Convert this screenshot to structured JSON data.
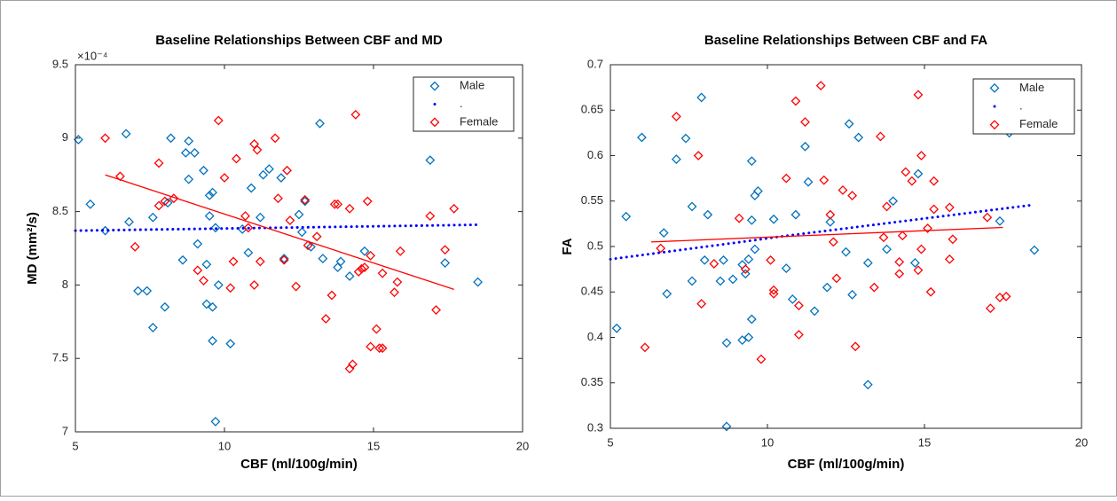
{
  "chart_data": [
    {
      "type": "scatter",
      "title": "Baseline Relationships Between CBF and MD",
      "xlabel": "CBF (ml/100g/min)",
      "ylabel": "MD (mm²/s)",
      "y_exponent": "×10⁻⁴",
      "xlim": [
        5,
        20
      ],
      "xticks": [
        5,
        10,
        15,
        20
      ],
      "ylim": [
        7,
        9.5
      ],
      "yticks": [
        7,
        7.5,
        8,
        8.5,
        9,
        9.5
      ],
      "legend": "upper right",
      "series": [
        {
          "name": "Male",
          "color": "#0072bd",
          "marker": "diamond",
          "x": [
            5.1,
            5.5,
            6.0,
            6.7,
            6.8,
            7.1,
            7.4,
            7.6,
            7.6,
            8.0,
            8.1,
            8.2,
            8.6,
            8.7,
            8.8,
            8.8,
            9.0,
            9.1,
            9.3,
            9.4,
            9.4,
            9.5,
            9.5,
            9.6,
            9.6,
            9.6,
            9.7,
            9.7,
            9.8,
            10.2,
            10.6,
            10.8,
            10.9,
            11.2,
            11.3,
            11.5,
            11.9,
            12.0,
            12.5,
            12.6,
            12.7,
            12.9,
            13.2,
            13.3,
            13.8,
            13.9,
            14.2,
            14.7,
            16.9,
            17.4,
            18.5
          ],
          "values": [
            8.99,
            8.55,
            8.37,
            9.03,
            8.43,
            7.96,
            7.96,
            8.46,
            7.71,
            7.85,
            8.56,
            9.0,
            8.17,
            8.9,
            8.98,
            8.72,
            8.9,
            8.28,
            8.78,
            8.14,
            7.87,
            8.47,
            8.61,
            8.63,
            7.85,
            7.62,
            7.07,
            8.39,
            8.0,
            7.6,
            8.38,
            8.22,
            8.66,
            8.46,
            8.75,
            8.79,
            8.73,
            8.18,
            8.48,
            8.36,
            8.57,
            8.26,
            9.1,
            8.18,
            8.12,
            8.16,
            8.06,
            8.23,
            8.85,
            8.15,
            8.02
          ]
        },
        {
          "name": ".",
          "color": "#0000ff",
          "marker": "dotted-line",
          "x": [
            5,
            18.5
          ],
          "values": [
            8.37,
            8.41
          ]
        },
        {
          "name": "Female",
          "color": "#ff0000",
          "marker": "diamond",
          "x": [
            6.0,
            6.5,
            7.0,
            7.8,
            7.8,
            8.0,
            8.3,
            9.1,
            9.3,
            9.8,
            10.0,
            10.2,
            10.3,
            10.4,
            10.7,
            10.8,
            11.0,
            11.0,
            11.1,
            11.2,
            11.7,
            11.8,
            12.0,
            12.1,
            12.2,
            12.4,
            12.7,
            12.8,
            13.1,
            13.4,
            13.6,
            13.7,
            13.8,
            14.2,
            14.2,
            14.3,
            14.4,
            14.5,
            14.6,
            14.7,
            14.8,
            14.9,
            14.9,
            15.1,
            15.2,
            15.3,
            15.3,
            15.7,
            15.8,
            15.9,
            16.9,
            17.1,
            17.4,
            17.7
          ],
          "values": [
            9.0,
            8.74,
            8.26,
            8.83,
            8.54,
            8.57,
            8.59,
            8.1,
            8.03,
            9.12,
            8.73,
            7.98,
            8.16,
            8.86,
            8.47,
            8.39,
            8.0,
            8.96,
            8.92,
            8.16,
            9.0,
            8.59,
            8.17,
            8.78,
            8.44,
            7.99,
            8.58,
            8.27,
            8.33,
            7.77,
            7.93,
            8.55,
            8.55,
            8.52,
            7.43,
            7.46,
            9.16,
            8.09,
            8.11,
            8.12,
            8.57,
            7.58,
            8.2,
            7.7,
            7.57,
            7.57,
            8.08,
            7.95,
            8.02,
            8.23,
            8.47,
            7.83,
            8.24,
            8.52
          ]
        }
      ],
      "fit_line": {
        "color": "#ff0000",
        "x": [
          6.0,
          17.7
        ],
        "values": [
          8.75,
          7.97
        ]
      }
    },
    {
      "type": "scatter",
      "title": "Baseline Relationships Between CBF and FA",
      "xlabel": "CBF (ml/100g/min)",
      "ylabel": "FA",
      "xlim": [
        5,
        20
      ],
      "xticks": [
        5,
        10,
        15,
        20
      ],
      "ylim": [
        0.3,
        0.7
      ],
      "yticks": [
        0.3,
        0.35,
        0.4,
        0.45,
        0.5,
        0.55,
        0.6,
        0.65,
        0.7
      ],
      "legend": "upper right",
      "series": [
        {
          "name": "Male",
          "color": "#0072bd",
          "marker": "diamond",
          "x": [
            5.2,
            5.5,
            6.0,
            6.7,
            6.8,
            7.1,
            7.4,
            7.6,
            7.6,
            7.9,
            8.0,
            8.1,
            8.5,
            8.6,
            8.7,
            8.7,
            8.9,
            9.2,
            9.2,
            9.3,
            9.4,
            9.4,
            9.5,
            9.5,
            9.5,
            9.6,
            9.6,
            9.7,
            10.2,
            10.6,
            10.8,
            10.9,
            11.2,
            11.3,
            11.5,
            11.9,
            12.0,
            12.5,
            12.6,
            12.7,
            12.9,
            13.2,
            13.2,
            13.8,
            14.0,
            14.7,
            14.8,
            17.4,
            17.7,
            18.5
          ],
          "values": [
            0.41,
            0.533,
            0.62,
            0.515,
            0.448,
            0.596,
            0.619,
            0.544,
            0.462,
            0.664,
            0.485,
            0.535,
            0.462,
            0.485,
            0.394,
            0.302,
            0.464,
            0.48,
            0.397,
            0.47,
            0.486,
            0.4,
            0.594,
            0.529,
            0.42,
            0.556,
            0.497,
            0.561,
            0.53,
            0.476,
            0.442,
            0.535,
            0.61,
            0.571,
            0.429,
            0.455,
            0.527,
            0.494,
            0.635,
            0.447,
            0.62,
            0.482,
            0.348,
            0.497,
            0.55,
            0.482,
            0.58,
            0.528,
            0.625,
            0.496
          ]
        },
        {
          "name": ".",
          "color": "#0000ff",
          "marker": "dotted-line",
          "x": [
            5,
            9.6,
            10.2,
            18.5
          ],
          "values": [
            0.486,
            0.507,
            0.51,
            0.546
          ]
        },
        {
          "name": "Female",
          "color": "#ff0000",
          "marker": "diamond",
          "x": [
            6.1,
            6.6,
            7.1,
            7.8,
            7.9,
            8.3,
            9.1,
            9.3,
            9.8,
            10.1,
            10.2,
            10.2,
            10.6,
            10.9,
            11.0,
            11.0,
            11.2,
            11.7,
            11.8,
            12.0,
            12.1,
            12.2,
            12.4,
            12.7,
            12.8,
            13.4,
            13.6,
            13.7,
            13.8,
            14.2,
            14.2,
            14.3,
            14.4,
            14.6,
            14.8,
            14.8,
            14.9,
            14.9,
            15.1,
            15.2,
            15.3,
            15.3,
            15.8,
            15.8,
            15.9,
            17.0,
            17.1,
            17.4,
            17.6
          ],
          "values": [
            0.389,
            0.498,
            0.643,
            0.6,
            0.437,
            0.481,
            0.531,
            0.475,
            0.376,
            0.485,
            0.448,
            0.452,
            0.575,
            0.66,
            0.435,
            0.403,
            0.637,
            0.677,
            0.573,
            0.535,
            0.505,
            0.465,
            0.562,
            0.556,
            0.39,
            0.455,
            0.621,
            0.51,
            0.544,
            0.47,
            0.483,
            0.512,
            0.582,
            0.572,
            0.667,
            0.474,
            0.6,
            0.497,
            0.52,
            0.45,
            0.572,
            0.541,
            0.543,
            0.486,
            0.508,
            0.532,
            0.432,
            0.444,
            0.445
          ]
        }
      ],
      "fit_line": {
        "color": "#ff0000",
        "x": [
          6.3,
          17.5
        ],
        "values": [
          0.505,
          0.521
        ]
      }
    }
  ]
}
